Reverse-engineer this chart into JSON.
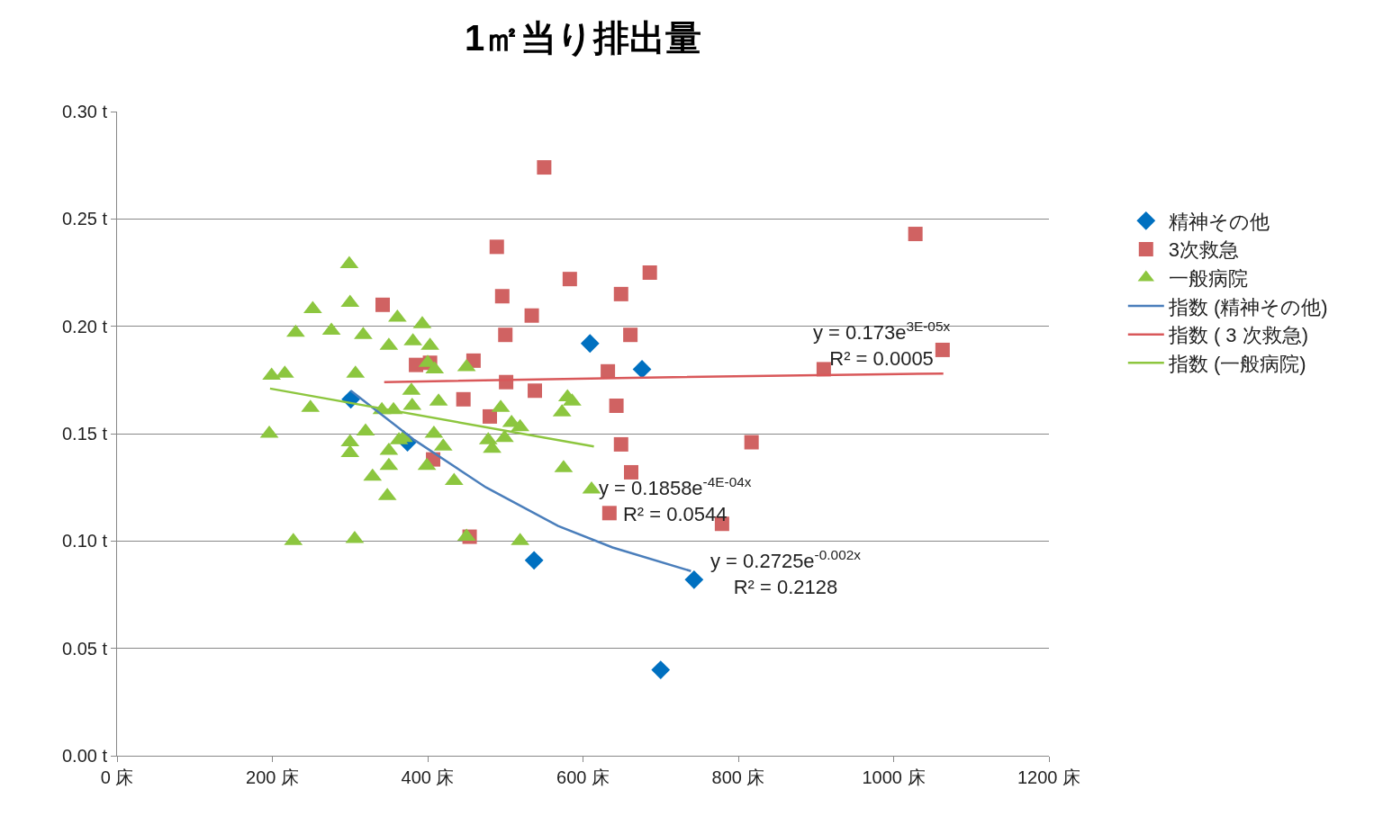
{
  "chart_data": {
    "type": "scatter",
    "title": "1㎡当り排出量",
    "xlim": [
      0,
      1200
    ],
    "xticks": [
      {
        "value": 0,
        "label": "0 床"
      },
      {
        "value": 200,
        "label": "200 床"
      },
      {
        "value": 400,
        "label": "400 床"
      },
      {
        "value": 600,
        "label": "600 床"
      },
      {
        "value": 800,
        "label": "800 床"
      },
      {
        "value": 1000,
        "label": "1000 床"
      },
      {
        "value": 1200,
        "label": "1200 床"
      }
    ],
    "ylim": [
      0,
      0.3
    ],
    "yticks": [
      {
        "value": 0,
        "label": "0.00 t"
      },
      {
        "value": 0.05,
        "label": "0.05 t"
      },
      {
        "value": 0.1,
        "label": "0.10 t"
      },
      {
        "value": 0.15,
        "label": "0.15 t"
      },
      {
        "value": 0.2,
        "label": "0.20 t"
      },
      {
        "value": 0.25,
        "label": "0.25 t"
      },
      {
        "value": 0.3,
        "label": "0.30 t"
      }
    ],
    "grid": "y",
    "legend": "right",
    "series": [
      {
        "name": "精神その他",
        "type": "scatter",
        "marker": "diamond",
        "color": "#0070c0",
        "x": [
          301,
          374,
          609,
          676,
          537,
          743,
          700
        ],
        "values": [
          0.166,
          0.146,
          0.192,
          0.18,
          0.091,
          0.082,
          0.04
        ]
      },
      {
        "name": "3次救急",
        "type": "scatter",
        "marker": "square",
        "color": "#d06262",
        "x": [
          550,
          489,
          496,
          583,
          686,
          649,
          534,
          661,
          500,
          342,
          385,
          403,
          459,
          632,
          910,
          1028,
          1063,
          501,
          538,
          446,
          643,
          480,
          649,
          817,
          407,
          662,
          634,
          779,
          454
        ],
        "values": [
          0.274,
          0.237,
          0.214,
          0.222,
          0.225,
          0.215,
          0.205,
          0.196,
          0.196,
          0.21,
          0.182,
          0.183,
          0.184,
          0.179,
          0.18,
          0.243,
          0.189,
          0.174,
          0.17,
          0.166,
          0.163,
          0.158,
          0.145,
          0.146,
          0.138,
          0.132,
          0.113,
          0.108,
          0.102
        ]
      },
      {
        "name": "一般病院",
        "type": "scatter",
        "marker": "triangle",
        "color": "#8cc63f",
        "x": [
          299,
          252,
          300,
          230,
          276,
          317,
          361,
          393,
          350,
          381,
          403,
          199,
          216,
          307,
          400,
          409,
          450,
          249,
          341,
          356,
          379,
          380,
          414,
          196,
          320,
          300,
          300,
          350,
          363,
          369,
          408,
          420,
          329,
          350,
          399,
          434,
          348,
          227,
          306,
          450,
          519,
          494,
          508,
          519,
          478,
          483,
          499,
          580,
          586,
          573,
          575,
          611
        ],
        "values": [
          0.229,
          0.208,
          0.211,
          0.197,
          0.198,
          0.196,
          0.204,
          0.201,
          0.191,
          0.193,
          0.191,
          0.177,
          0.178,
          0.178,
          0.183,
          0.18,
          0.181,
          0.162,
          0.161,
          0.161,
          0.17,
          0.163,
          0.165,
          0.15,
          0.151,
          0.146,
          0.141,
          0.142,
          0.147,
          0.148,
          0.15,
          0.144,
          0.13,
          0.135,
          0.135,
          0.128,
          0.121,
          0.1,
          0.101,
          0.102,
          0.1,
          0.162,
          0.155,
          0.153,
          0.147,
          0.143,
          0.148,
          0.167,
          0.165,
          0.16,
          0.134,
          0.124
        ]
      },
      {
        "name": "指数 (精神その他)",
        "type": "line",
        "marker": "none",
        "color": "#4a7ebb",
        "x": [
          301,
          383,
          475,
          568,
          638,
          739
        ],
        "values": [
          0.17,
          0.147,
          0.125,
          0.107,
          0.097,
          0.086
        ]
      },
      {
        "name": "指数 ( 3 次救急)",
        "type": "line",
        "marker": "none",
        "color": "#d9585a",
        "x": [
          344,
          661,
          1064
        ],
        "values": [
          0.174,
          0.176,
          0.178
        ]
      },
      {
        "name": "指数 (一般病院)",
        "type": "line",
        "marker": "none",
        "color": "#8dc63f",
        "x": [
          197,
          614
        ],
        "values": [
          0.171,
          0.144
        ]
      }
    ],
    "annotations": [
      "y = 0.173e$^{3E-05x}$\nR² = 0.0005",
      "y = 0.1858e$^{-4E-04x}$\nR² = 0.0544",
      "y = 0.2725e$^{-0.002x}$\nR² = 0.2128"
    ]
  }
}
